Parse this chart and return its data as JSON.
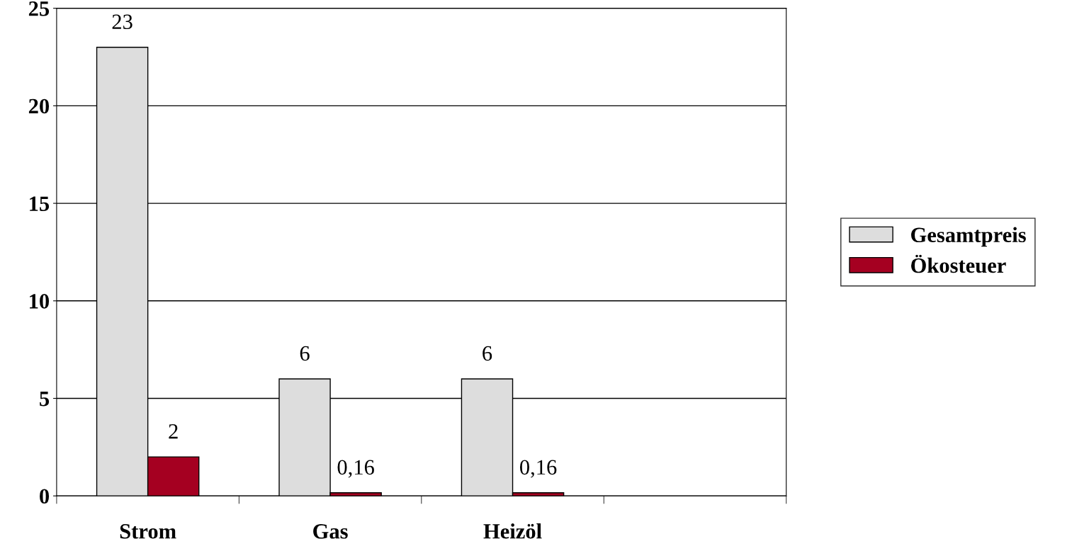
{
  "chart_data": {
    "type": "bar",
    "categories": [
      "Strom",
      "Gas",
      "Heizöl",
      null
    ],
    "series": [
      {
        "name": "Gesamtpreis",
        "color": "#dddddd",
        "values": [
          23,
          6,
          6,
          null
        ],
        "value_labels": [
          "23",
          "6",
          "6",
          null
        ]
      },
      {
        "name": "Ökosteuer",
        "color": "#a50021",
        "values": [
          2,
          0.16,
          0.16,
          null
        ],
        "value_labels": [
          "2",
          "0,16",
          "0,16",
          null
        ]
      }
    ],
    "ylim": [
      0,
      25
    ],
    "yticks": [
      0,
      5,
      10,
      15,
      20,
      25
    ],
    "grid": "y",
    "legend": "right"
  }
}
